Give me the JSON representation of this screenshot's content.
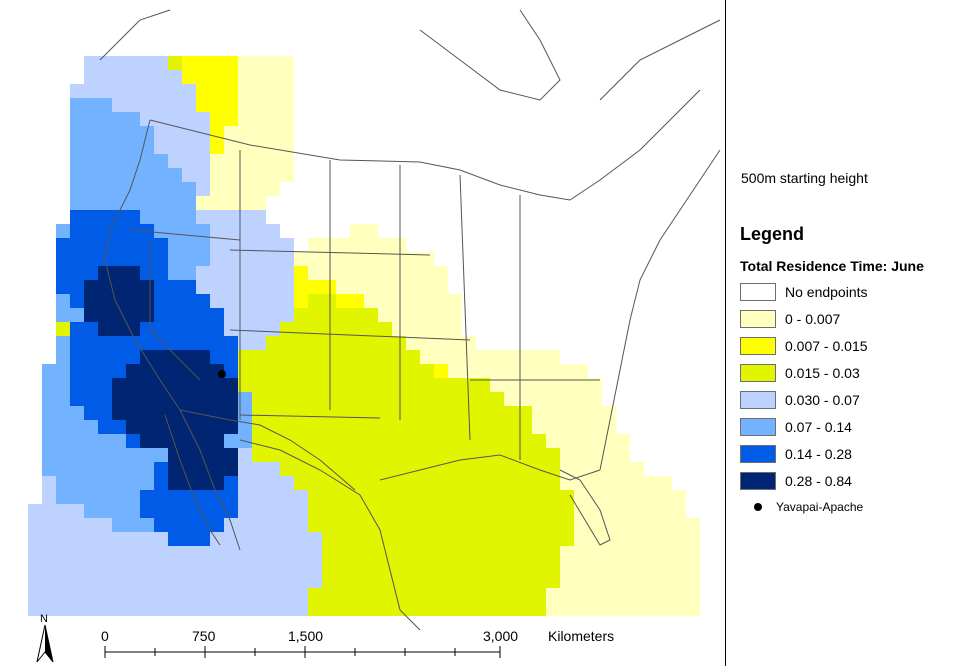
{
  "subtitle": "500m starting height",
  "legend": {
    "title": "Legend",
    "heading": "Total Residence Time: June",
    "classes": [
      {
        "label": "No endpoints",
        "color": "#ffffff"
      },
      {
        "label": "0 - 0.007",
        "color": "#ffffbe"
      },
      {
        "label": "0.007 - 0.015",
        "color": "#ffff00"
      },
      {
        "label": "0.015 - 0.03",
        "color": "#e1f500"
      },
      {
        "label": "0.030 - 0.07",
        "color": "#bed2ff"
      },
      {
        "label": "0.07 - 0.14",
        "color": "#73b2ff"
      },
      {
        "label": "0.14 - 0.28",
        "color": "#005ce6"
      },
      {
        "label": "0.28 - 0.84",
        "color": "#002673"
      }
    ],
    "point": {
      "label": "Yavapai-Apache",
      "color": "#000000"
    }
  },
  "north_arrow": {
    "label": "N"
  },
  "scale_bar": {
    "ticks": [
      "0",
      "750",
      "1,500",
      "3,000"
    ],
    "unit": "Kilometers"
  }
}
